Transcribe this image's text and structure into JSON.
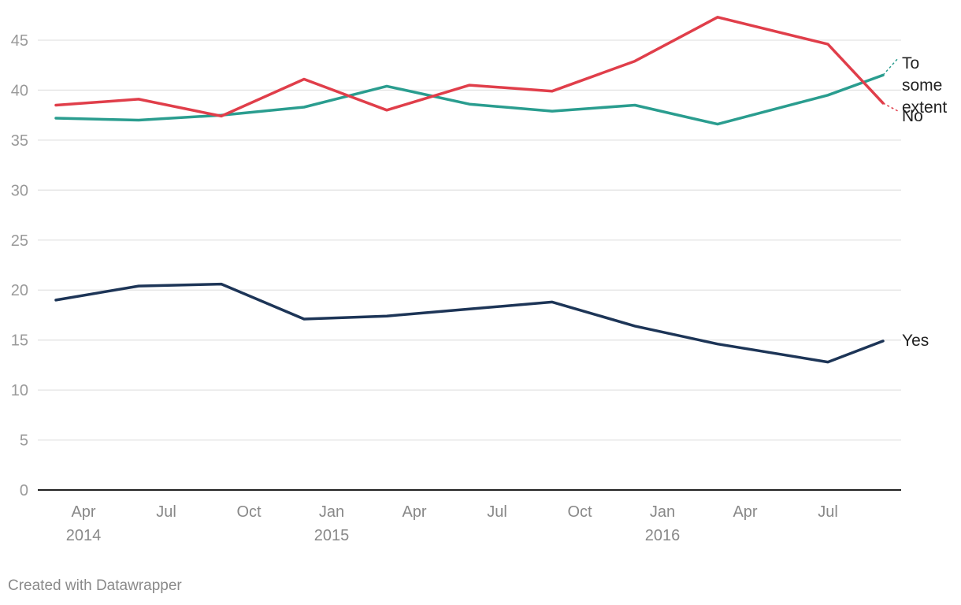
{
  "chart_data": {
    "type": "line",
    "title": "",
    "xlabel": "",
    "ylabel": "",
    "ylim": [
      0,
      45
    ],
    "yticks": [
      0,
      5,
      10,
      15,
      20,
      25,
      30,
      35,
      40,
      45
    ],
    "grid": true,
    "x": [
      "2014-03",
      "2014-06",
      "2014-09",
      "2014-12",
      "2015-03",
      "2015-06",
      "2015-09",
      "2015-12",
      "2016-03",
      "2016-07",
      "2016-09"
    ],
    "xticks": [
      {
        "date": "2014-04",
        "label": "Apr",
        "year": "2014"
      },
      {
        "date": "2014-07",
        "label": "Jul",
        "year": ""
      },
      {
        "date": "2014-10",
        "label": "Oct",
        "year": ""
      },
      {
        "date": "2015-01",
        "label": "Jan",
        "year": "2015"
      },
      {
        "date": "2015-04",
        "label": "Apr",
        "year": ""
      },
      {
        "date": "2015-07",
        "label": "Jul",
        "year": ""
      },
      {
        "date": "2015-10",
        "label": "Oct",
        "year": ""
      },
      {
        "date": "2016-01",
        "label": "Jan",
        "year": "2016"
      },
      {
        "date": "2016-04",
        "label": "Apr",
        "year": ""
      },
      {
        "date": "2016-07",
        "label": "Jul",
        "year": ""
      }
    ],
    "series": [
      {
        "name": "To some extent",
        "label_lines": [
          "To",
          "some",
          "extent"
        ],
        "color": "#2a9d8f",
        "values": [
          37.2,
          37.0,
          37.5,
          38.3,
          40.4,
          38.6,
          37.9,
          38.5,
          36.6,
          39.5,
          41.5
        ]
      },
      {
        "name": "No",
        "label_lines": [
          "No"
        ],
        "color": "#e03e4a",
        "values": [
          38.5,
          39.1,
          37.4,
          41.1,
          38.0,
          40.5,
          39.9,
          42.9,
          47.3,
          44.6,
          38.7
        ]
      },
      {
        "name": "Yes",
        "label_lines": [
          "Yes"
        ],
        "color": "#1d3557",
        "values": [
          19.0,
          20.4,
          20.6,
          17.1,
          17.4,
          18.1,
          18.8,
          16.4,
          14.6,
          12.8,
          14.9
        ]
      }
    ]
  },
  "credit": "Created with Datawrapper"
}
